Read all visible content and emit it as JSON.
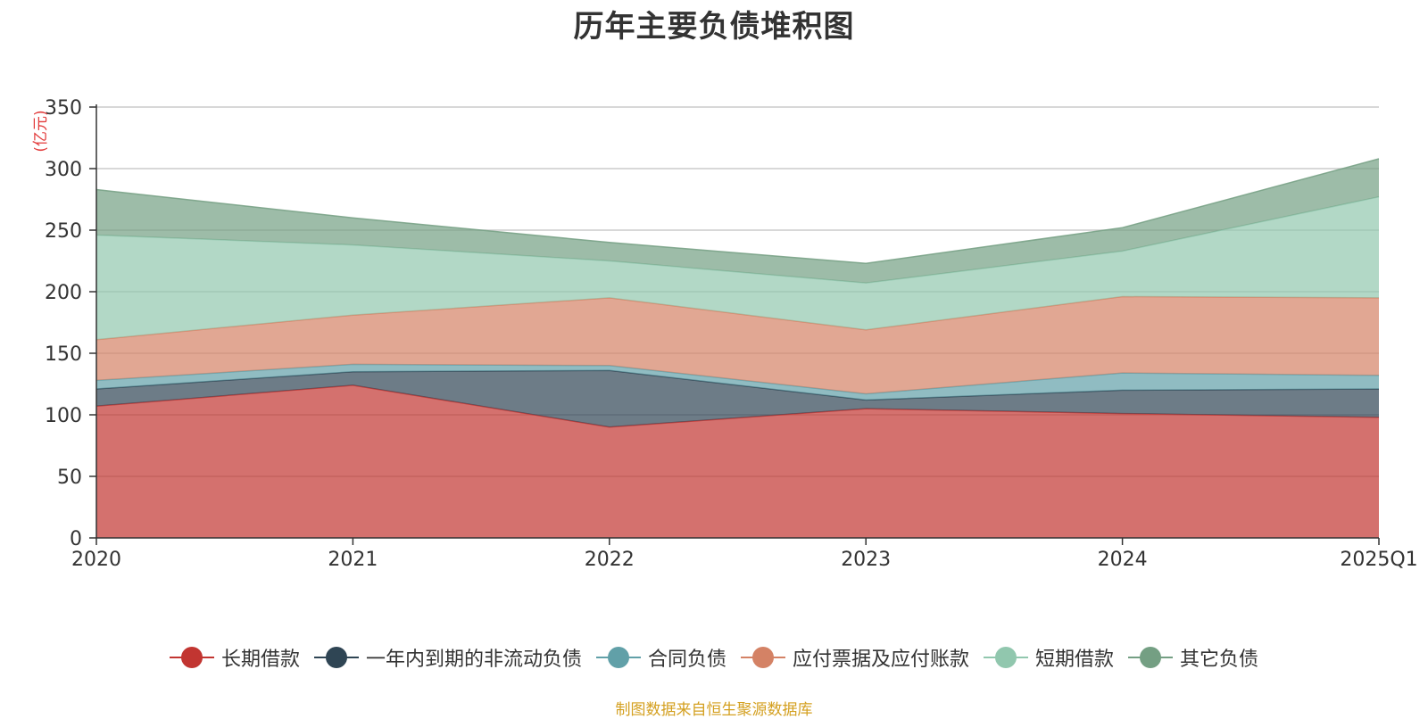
{
  "chart_data": {
    "type": "area",
    "stacked": true,
    "title": "历年主要负债堆积图",
    "unit_label": "(亿元)",
    "x": [
      "2020",
      "2021",
      "2022",
      "2023",
      "2024",
      "2025Q1"
    ],
    "ylim": [
      0,
      350
    ],
    "yticks": [
      "0",
      "50",
      "100",
      "150",
      "200",
      "250",
      "300",
      "350"
    ],
    "grid": true,
    "legend_position": "bottom",
    "series": [
      {
        "name": "长期借款",
        "color": "#c23531",
        "values": [
          107,
          124,
          90,
          105,
          101,
          98
        ]
      },
      {
        "name": "一年内到期的非流动负债",
        "color": "#2f4554",
        "values": [
          14,
          11,
          46,
          7,
          19,
          23
        ]
      },
      {
        "name": "合同负债",
        "color": "#61a0a8",
        "values": [
          7,
          6,
          4,
          5,
          14,
          11
        ]
      },
      {
        "name": "应付票据及应付账款",
        "color": "#d48265",
        "values": [
          33,
          40,
          55,
          52,
          62,
          63
        ]
      },
      {
        "name": "短期借款",
        "color": "#91c7ae",
        "values": [
          85,
          57,
          30,
          38,
          37,
          82
        ]
      },
      {
        "name": "其它负债",
        "color": "#749f83",
        "values": [
          37,
          22,
          15,
          16,
          19,
          31
        ]
      }
    ],
    "source_note": "制图数据来自恒生聚源数据库"
  }
}
